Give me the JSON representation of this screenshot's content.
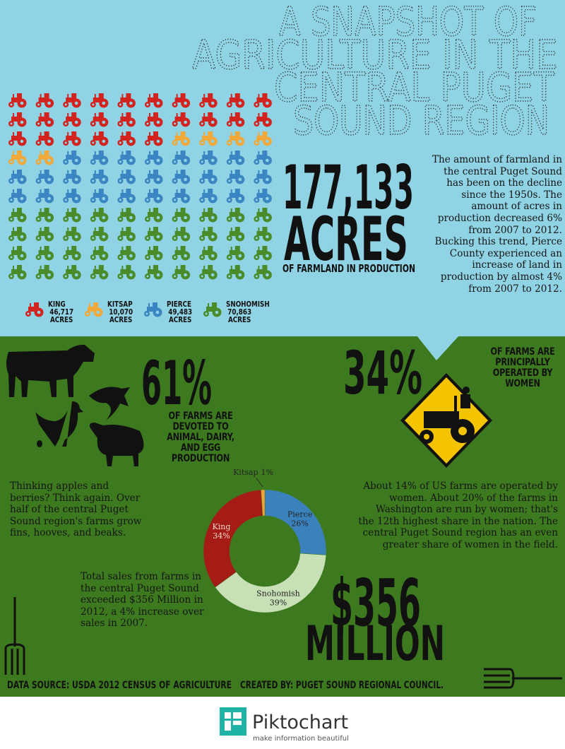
{
  "header": {
    "title_lines": [
      "A SNAPSHOT OF",
      "AGRICULTURE IN THE",
      "CENTRAL PUGET",
      "SOUND REGION"
    ]
  },
  "farmland": {
    "figure": "177,133",
    "unit": "ACRES",
    "caption": "OF FARMLAND IN PRODUCTION",
    "text": "The amount of farmland in the central Puget Sound has been on the decline since the 1950s. The amount of acres in production decreased 6% from 2007 to 2012. Bucking this trend, Pierce County experienced an increase of land in production by almost 4% from 2007 to 2012."
  },
  "animals": {
    "figure": "61%",
    "caption": "OF FARMS ARE DEVOTED TO ANIMAL, DAIRY, AND EGG PRODUCTION",
    "text": "Thinking apples and berries? Think again. Over half of the central Puget Sound region's farms grow fins, hooves, and beaks."
  },
  "women": {
    "figure": "34%",
    "caption": "OF FARMS ARE PRINCIPALLY OPERATED BY WOMEN",
    "text": "About 14% of US farms are operated by women. About 20% of the farms in Washington are run by women; that's the 12th highest share in the nation. The central Puget Sound region has an even greater share of women in the field."
  },
  "sales": {
    "text": "Total sales from farms in the central Puget Sound exceeded $356 Million in 2012, a 4% increase over sales in 2007.",
    "figure": "$356",
    "unit": "MILLION"
  },
  "footer": {
    "source": "DATA SOURCE: USDA 2012 CENSUS OF AGRICULTURE",
    "credit": "CREATED BY: PUGET SOUND REGIONAL COUNCIL.",
    "brand": "Piktochart",
    "tagline": "make information beautiful"
  },
  "chart_data": [
    {
      "type": "waffle",
      "series": [
        {
          "name": "KING",
          "color": "#d3231f",
          "values": [
            46717
          ],
          "value_labels": [
            "46,717 ACRES"
          ]
        },
        {
          "name": "KITSAP",
          "color": "#f2a93b",
          "values": [
            10070
          ],
          "value_labels": [
            "10,070 ACRES"
          ]
        },
        {
          "name": "PIERCE",
          "color": "#3b86c2",
          "values": [
            49483
          ],
          "value_labels": [
            "49,483 ACRES"
          ]
        },
        {
          "name": "SNOHOMISH",
          "color": "#4a8c2a",
          "values": [
            70863
          ],
          "value_labels": [
            "70,863 ACRES"
          ]
        }
      ]
    },
    {
      "type": "donut",
      "categories": [
        "Pierce",
        "Snohomish",
        "King",
        "Kitsap"
      ],
      "values": [
        26,
        39,
        34,
        1
      ],
      "value_labels": [
        "26%",
        "39%",
        "34%",
        "1%"
      ],
      "colors": [
        "#3b82bd",
        "#c7e0b6",
        "#a51c16",
        "#f2a33a"
      ]
    }
  ]
}
